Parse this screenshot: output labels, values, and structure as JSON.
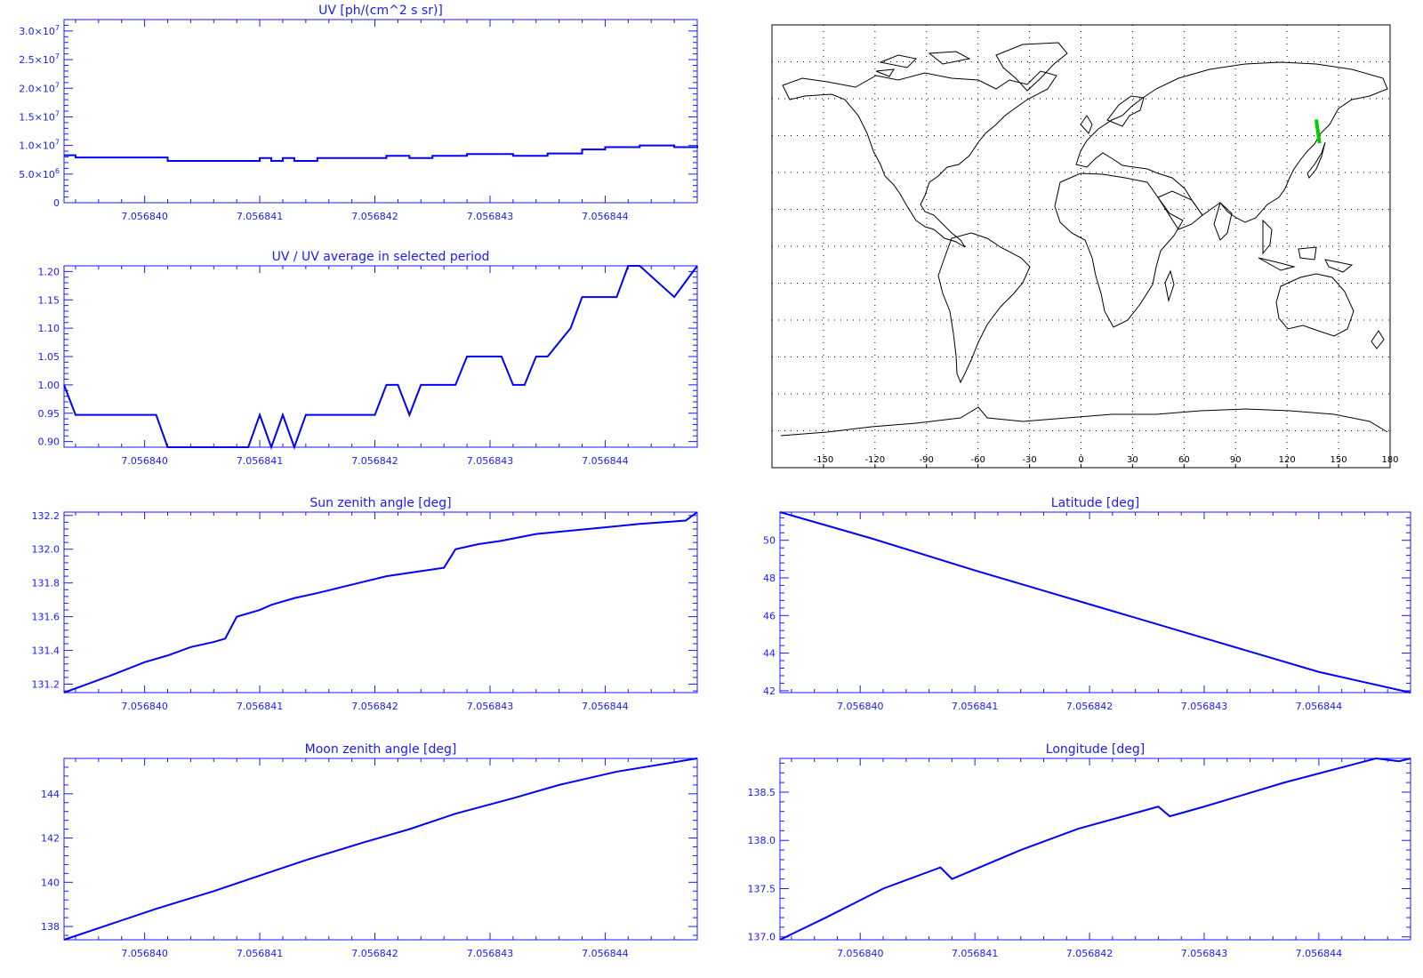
{
  "colors": {
    "axis": "#1a1aff",
    "series": "#0000ff",
    "map_frame": "#000000",
    "track": "#00cc00"
  },
  "chart_data": [
    {
      "id": "uv",
      "type": "line",
      "title": "UV [ph/(cm^2 s sr)]",
      "xlabel": "",
      "ylabel": "",
      "xlim": [
        7.0568393,
        7.0568448
      ],
      "xticks": [
        7.05684,
        7.056841,
        7.056842,
        7.056843,
        7.056844
      ],
      "xtick_labels": [
        "7.056840",
        "7.056841",
        "7.056842",
        "7.056843",
        "7.056844"
      ],
      "ylim": [
        0,
        32000000.0
      ],
      "yticks": [
        0,
        5000000.0,
        10000000.0,
        15000000.0,
        20000000.0,
        25000000.0,
        30000000.0
      ],
      "ytick_labels": [
        {
          "m": "0",
          "e": ""
        },
        {
          "m": "5.0×10",
          "e": "6"
        },
        {
          "m": "1.0×10",
          "e": "7"
        },
        {
          "m": "1.5×10",
          "e": "7"
        },
        {
          "m": "2.0×10",
          "e": "7"
        },
        {
          "m": "2.5×10",
          "e": "7"
        },
        {
          "m": "3.0×10",
          "e": "7"
        }
      ],
      "step": true,
      "series": [
        {
          "values": [
            [
              7.0568393,
              8300000.0
            ],
            [
              7.0568394,
              7900000.0
            ],
            [
              7.0568402,
              7300000.0
            ],
            [
              7.056841,
              7800000.0
            ],
            [
              7.0568411,
              7300000.0
            ],
            [
              7.0568412,
              7800000.0
            ],
            [
              7.0568413,
              7300000.0
            ],
            [
              7.0568415,
              7800000.0
            ],
            [
              7.0568421,
              8200000.0
            ],
            [
              7.0568423,
              7800000.0
            ],
            [
              7.0568425,
              8200000.0
            ],
            [
              7.0568428,
              8500000.0
            ],
            [
              7.0568432,
              8200000.0
            ],
            [
              7.0568435,
              8600000.0
            ],
            [
              7.0568438,
              9300000.0
            ],
            [
              7.056844,
              9700000.0
            ],
            [
              7.0568443,
              10000000.0
            ],
            [
              7.0568446,
              9700000.0
            ],
            [
              7.0568448,
              10000000.0
            ]
          ]
        }
      ]
    },
    {
      "id": "ratio",
      "type": "line",
      "title": "UV / UV average in selected period",
      "xlabel": "",
      "ylabel": "",
      "xlim": [
        7.0568393,
        7.0568448
      ],
      "xticks": [
        7.05684,
        7.056841,
        7.056842,
        7.056843,
        7.056844
      ],
      "xtick_labels": [
        "7.056840",
        "7.056841",
        "7.056842",
        "7.056843",
        "7.056844"
      ],
      "ylim": [
        0.89,
        1.21
      ],
      "yticks": [
        0.9,
        0.95,
        1.0,
        1.05,
        1.1,
        1.15,
        1.2
      ],
      "ytick_labels": [
        "0.90",
        "0.95",
        "1.00",
        "1.05",
        "1.10",
        "1.15",
        "1.20"
      ],
      "series": [
        {
          "values": [
            [
              7.0568393,
              1.0
            ],
            [
              7.0568394,
              0.947
            ],
            [
              7.0568401,
              0.947
            ],
            [
              7.0568402,
              0.89
            ],
            [
              7.0568409,
              0.89
            ],
            [
              7.056841,
              0.947
            ],
            [
              7.0568411,
              0.89
            ],
            [
              7.0568412,
              0.947
            ],
            [
              7.0568413,
              0.89
            ],
            [
              7.0568414,
              0.947
            ],
            [
              7.056842,
              0.947
            ],
            [
              7.0568421,
              1.0
            ],
            [
              7.0568422,
              1.0
            ],
            [
              7.0568423,
              0.947
            ],
            [
              7.0568424,
              1.0
            ],
            [
              7.0568427,
              1.0
            ],
            [
              7.0568428,
              1.05
            ],
            [
              7.0568431,
              1.05
            ],
            [
              7.0568432,
              1.0
            ],
            [
              7.0568433,
              1.0
            ],
            [
              7.0568434,
              1.05
            ],
            [
              7.0568435,
              1.05
            ],
            [
              7.0568437,
              1.1
            ],
            [
              7.0568438,
              1.155
            ],
            [
              7.0568441,
              1.155
            ],
            [
              7.0568442,
              1.21
            ],
            [
              7.0568443,
              1.21
            ],
            [
              7.0568446,
              1.155
            ],
            [
              7.0568448,
              1.21
            ]
          ]
        }
      ]
    },
    {
      "id": "sza",
      "type": "line",
      "title": "Sun zenith angle [deg]",
      "xlabel": "",
      "ylabel": "",
      "xlim": [
        7.0568393,
        7.0568448
      ],
      "xticks": [
        7.05684,
        7.056841,
        7.056842,
        7.056843,
        7.056844
      ],
      "xtick_labels": [
        "7.056840",
        "7.056841",
        "7.056842",
        "7.056843",
        "7.056844"
      ],
      "ylim": [
        131.15,
        132.22
      ],
      "yticks": [
        131.2,
        131.4,
        131.6,
        131.8,
        132.0,
        132.2
      ],
      "ytick_labels": [
        "131.2",
        "131.4",
        "131.6",
        "131.8",
        "132.0",
        "132.2"
      ],
      "series": [
        {
          "values": [
            [
              7.0568393,
              131.15
            ],
            [
              7.0568395,
              131.2
            ],
            [
              7.0568397,
              131.25
            ],
            [
              7.05684,
              131.33
            ],
            [
              7.0568402,
              131.37
            ],
            [
              7.0568404,
              131.42
            ],
            [
              7.0568406,
              131.45
            ],
            [
              7.0568407,
              131.47
            ],
            [
              7.0568408,
              131.6
            ],
            [
              7.056841,
              131.64
            ],
            [
              7.0568411,
              131.67
            ],
            [
              7.0568413,
              131.71
            ],
            [
              7.0568415,
              131.74
            ],
            [
              7.0568418,
              131.79
            ],
            [
              7.0568421,
              131.84
            ],
            [
              7.0568423,
              131.86
            ],
            [
              7.0568426,
              131.89
            ],
            [
              7.0568427,
              132.0
            ],
            [
              7.0568429,
              132.03
            ],
            [
              7.0568431,
              132.05
            ],
            [
              7.0568434,
              132.09
            ],
            [
              7.0568437,
              132.11
            ],
            [
              7.056844,
              132.13
            ],
            [
              7.0568443,
              132.15
            ],
            [
              7.0568447,
              132.17
            ],
            [
              7.0568448,
              132.22
            ]
          ]
        }
      ]
    },
    {
      "id": "mza",
      "type": "line",
      "title": "Moon zenith angle [deg]",
      "xlabel": "",
      "ylabel": "",
      "xlim": [
        7.0568393,
        7.0568448
      ],
      "xticks": [
        7.05684,
        7.056841,
        7.056842,
        7.056843,
        7.056844
      ],
      "xtick_labels": [
        "7.056840",
        "7.056841",
        "7.056842",
        "7.056843",
        "7.056844"
      ],
      "ylim": [
        137.4,
        145.6
      ],
      "yticks": [
        138,
        140,
        142,
        144
      ],
      "ytick_labels": [
        "138",
        "140",
        "142",
        "144"
      ],
      "series": [
        {
          "values": [
            [
              7.0568393,
              137.4
            ],
            [
              7.0568397,
              138.1
            ],
            [
              7.0568401,
              138.8
            ],
            [
              7.0568406,
              139.6
            ],
            [
              7.056841,
              140.3
            ],
            [
              7.0568414,
              141.0
            ],
            [
              7.0568419,
              141.8
            ],
            [
              7.0568423,
              142.4
            ],
            [
              7.0568427,
              143.1
            ],
            [
              7.0568432,
              143.8
            ],
            [
              7.0568436,
              144.4
            ],
            [
              7.0568441,
              145.0
            ],
            [
              7.0568448,
              145.6
            ]
          ]
        }
      ]
    },
    {
      "id": "lat",
      "type": "line",
      "title": "Latitude [deg]",
      "xlabel": "",
      "ylabel": "",
      "xlim": [
        7.0568393,
        7.0568448
      ],
      "xticks": [
        7.05684,
        7.056841,
        7.056842,
        7.056843,
        7.056844
      ],
      "xtick_labels": [
        "7.056840",
        "7.056841",
        "7.056842",
        "7.056843",
        "7.056844"
      ],
      "ylim": [
        41.9,
        51.5
      ],
      "yticks": [
        42,
        44,
        46,
        48,
        50
      ],
      "ytick_labels": [
        "42",
        "44",
        "46",
        "48",
        "50"
      ],
      "series": [
        {
          "values": [
            [
              7.0568393,
              51.5
            ],
            [
              7.0568401,
              50.1
            ],
            [
              7.056841,
              48.4
            ],
            [
              7.056842,
              46.6
            ],
            [
              7.056843,
              44.8
            ],
            [
              7.056844,
              43.0
            ],
            [
              7.0568448,
              41.9
            ]
          ]
        }
      ]
    },
    {
      "id": "lon",
      "type": "line",
      "title": "Longitude [deg]",
      "xlabel": "",
      "ylabel": "",
      "xlim": [
        7.0568393,
        7.0568448
      ],
      "xticks": [
        7.05684,
        7.056841,
        7.056842,
        7.056843,
        7.056844
      ],
      "xtick_labels": [
        "7.056840",
        "7.056841",
        "7.056842",
        "7.056843",
        "7.056844"
      ],
      "ylim": [
        136.97,
        138.85
      ],
      "yticks": [
        137.0,
        137.5,
        138.0,
        138.5
      ],
      "ytick_labels": [
        "137.0",
        "137.5",
        "138.0",
        "138.5"
      ],
      "series": [
        {
          "values": [
            [
              7.0568393,
              136.97
            ],
            [
              7.0568397,
              137.2
            ],
            [
              7.0568402,
              137.5
            ],
            [
              7.0568407,
              137.72
            ],
            [
              7.0568408,
              137.6
            ],
            [
              7.0568414,
              137.9
            ],
            [
              7.0568419,
              138.12
            ],
            [
              7.0568426,
              138.35
            ],
            [
              7.0568427,
              138.25
            ],
            [
              7.056843,
              138.35
            ],
            [
              7.0568437,
              138.6
            ],
            [
              7.0568445,
              138.85
            ],
            [
              7.0568447,
              138.82
            ],
            [
              7.0568448,
              138.85
            ]
          ]
        }
      ]
    }
  ],
  "map": {
    "xticks": [
      -150,
      -120,
      -90,
      -60,
      -30,
      0,
      30,
      60,
      90,
      120,
      150,
      180
    ],
    "xtick_labels": [
      "-150",
      "-120",
      "-90",
      "-60",
      "-30",
      "0",
      "30",
      "60",
      "90",
      "120",
      "150",
      "180"
    ],
    "lon_range": [
      -180,
      180
    ],
    "lat_range": [
      -90,
      90
    ],
    "track": [
      [
        137.0,
        51.5
      ],
      [
        138.9,
        41.9
      ]
    ]
  }
}
